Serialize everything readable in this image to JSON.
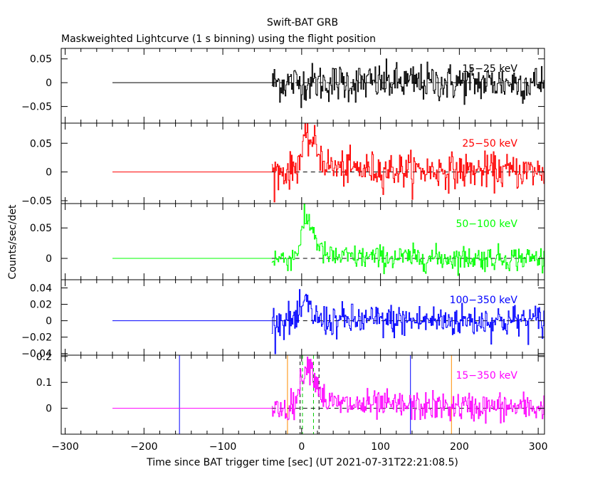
{
  "title": "Swift-BAT GRB",
  "subtitle": "Maskweighted Lightcurve (1 s binning) using the flight position",
  "xlabel": "Time since BAT trigger time [sec] (UT 2021-07-31T22:21:08.5)",
  "ylabel": "Counts/sec/det",
  "chart_data": {
    "type": "line",
    "title": "Swift-BAT GRB",
    "subtitle": "Maskweighted Lightcurve (1 s binning) using the flight position",
    "xlabel": "Time since BAT trigger time [sec] (UT 2021-07-31T22:21:08.5)",
    "ylabel": "Counts/sec/det",
    "xlim": [
      -305,
      308
    ],
    "x_ticks": [
      -300,
      -200,
      -100,
      0,
      100,
      200,
      300
    ],
    "x_tick_labels": [
      "−300",
      "−200",
      "−100",
      "0",
      "100",
      "200",
      "300"
    ],
    "grid": false,
    "zero_line_from_x": -240,
    "noise_start_x": -38,
    "panels": [
      {
        "label": "15−25 keV",
        "color": "#000000",
        "ylim": [
          -0.085,
          0.072
        ],
        "y_ticks": [
          0.05,
          0,
          -0.05
        ],
        "y_tick_labels": [
          "0.05",
          "0",
          "−0.05"
        ],
        "noise_sigma": 0.02,
        "pulse": null,
        "tail": null
      },
      {
        "label": "25−50 keV",
        "color": "#ff0000",
        "ylim": [
          -0.055,
          0.085
        ],
        "y_ticks": [
          0.05,
          0,
          -0.05
        ],
        "y_tick_labels": [
          "0.05",
          "0",
          "−0.05"
        ],
        "noise_sigma": 0.015,
        "pulse": {
          "peak_time": 8,
          "rise": 9,
          "decay": 12,
          "amplitude": 0.05
        },
        "tail": {
          "amplitude": 0.008,
          "decay": 150
        }
      },
      {
        "label": "50−100 keV",
        "color": "#00ff00",
        "ylim": [
          -0.035,
          0.09
        ],
        "y_ticks": [
          0.05,
          0
        ],
        "y_tick_labels": [
          "0.05",
          "0"
        ],
        "noise_sigma": 0.01,
        "pulse": {
          "peak_time": 6,
          "rise": 7,
          "decay": 10,
          "amplitude": 0.06
        },
        "tail": {
          "amplitude": 0.003,
          "decay": 120
        }
      },
      {
        "label": "100−350 keV",
        "color": "#0000ff",
        "ylim": [
          -0.042,
          0.05
        ],
        "y_ticks": [
          0.04,
          0.02,
          0,
          -0.02,
          -0.04
        ],
        "y_tick_labels": [
          "0.04",
          "0.02",
          "0",
          "−0.02",
          "−0.04"
        ],
        "noise_sigma": 0.01,
        "pulse": {
          "peak_time": 3,
          "rise": 4,
          "decay": 8,
          "amplitude": 0.02
        },
        "tail": null
      },
      {
        "label": "15−350 keV",
        "color": "#ff00ff",
        "ylim": [
          -0.1,
          0.205
        ],
        "y_ticks": [
          0.2,
          0.1,
          0
        ],
        "y_tick_labels": [
          "0.2",
          "0.1",
          "0"
        ],
        "noise_sigma": 0.028,
        "pulse": {
          "peak_time": 7,
          "rise": 9,
          "decay": 11,
          "amplitude": 0.15
        },
        "tail": {
          "amplitude": 0.02,
          "decay": 150
        },
        "markers": [
          {
            "x": -155,
            "color": "#0000ff",
            "style": "solid"
          },
          {
            "x": 138,
            "color": "#0000ff",
            "style": "solid"
          },
          {
            "x": -18,
            "color": "#ff8c00",
            "style": "solid"
          },
          {
            "x": 190,
            "color": "#ff8c00",
            "style": "solid"
          },
          {
            "x": -2,
            "color": "#000000",
            "style": "dashed"
          },
          {
            "x": 22,
            "color": "#000000",
            "style": "dashed"
          },
          {
            "x": 1,
            "color": "#00cc00",
            "style": "dashed"
          },
          {
            "x": 15,
            "color": "#00cc00",
            "style": "dashed"
          }
        ]
      }
    ]
  }
}
